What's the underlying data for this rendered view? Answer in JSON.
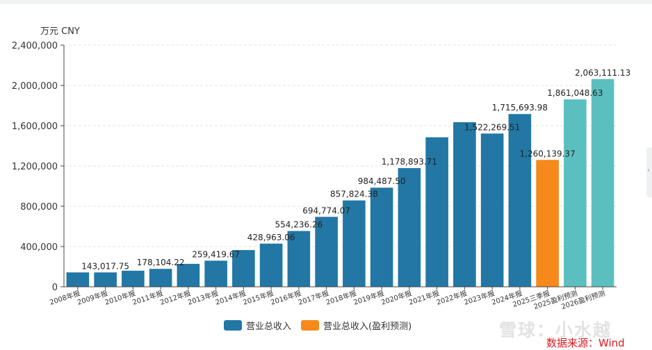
{
  "chart_data": {
    "type": "bar",
    "unit_label": "万元  CNY",
    "y_ticks": [
      "0",
      "400,000",
      "800,000",
      "1,200,000",
      "1,600,000",
      "2,000,000",
      "2,400,000"
    ],
    "ylim": [
      0,
      2400000
    ],
    "grid": true,
    "legend_position": "bottom",
    "categories": [
      "2008年报",
      "2009年报",
      "2010年报",
      "2011年报",
      "2012年报",
      "2013年报",
      "2014年报",
      "2015年报",
      "2016年报",
      "2017年报",
      "2018年报",
      "2019年报",
      "2020年报",
      "2021年报",
      "2022年报",
      "2023年报",
      "2024年报",
      "2025三季报",
      "2025盈利预测",
      "2026盈利预测"
    ],
    "values": [
      143000,
      143017.75,
      160000,
      178104.22,
      228000,
      259419.67,
      365000,
      428963.06,
      554236.26,
      694774.07,
      857824.38,
      984487.5,
      1178893.71,
      1485000,
      1635000,
      1522269.51,
      1715693.98,
      1260139.37,
      1861048.63,
      2063111.13
    ],
    "data_labels": [
      "",
      "143,017.75",
      "",
      "178,104.22",
      "",
      "259,419.67",
      "",
      "428,963.06",
      "554,236.26",
      "694,774.07",
      "857,824.38",
      "984,487.50",
      "1,178,893.71",
      "",
      "",
      "1,522,269.51",
      "1,715,693.98",
      "1,260,139.37",
      "1,861,048.63",
      "2,063,111.13"
    ],
    "bar_groups": [
      "revenue",
      "revenue",
      "revenue",
      "revenue",
      "revenue",
      "revenue",
      "revenue",
      "revenue",
      "revenue",
      "revenue",
      "revenue",
      "revenue",
      "revenue",
      "revenue",
      "revenue",
      "revenue",
      "revenue",
      "quarter",
      "forecast",
      "forecast"
    ],
    "colors": {
      "revenue": "#2277a5",
      "quarter": "#f5891b",
      "forecast": "#5bbfc0",
      "grid": "#e3e3e3",
      "axis": "#444444"
    }
  },
  "legend": [
    {
      "label": "营业总收入",
      "color": "#2277a5"
    },
    {
      "label": "营业总收入(盈利预测)",
      "color": "#f5891b"
    }
  ],
  "watermark": "雪球：小水越",
  "source": "数据来源：Wind",
  "side_handle_glyph": "‹"
}
